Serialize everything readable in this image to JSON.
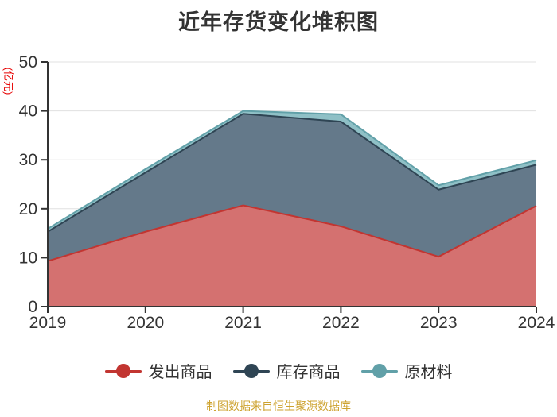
{
  "title": "近年存货变化堆积图",
  "footer": "制图数据来自恒生聚源数据库",
  "y_axis_unit": "(亿元)",
  "colors": {
    "title_text": "#333333",
    "axis": "#333333",
    "tick_text": "#333333",
    "gridline": "#e0e0e0",
    "y_unit_label": "#e60000",
    "footer_text": "#cda22e"
  },
  "legend": {
    "items": [
      {
        "label": "发出商品",
        "color": "#c23531"
      },
      {
        "label": "库存商品",
        "color": "#2f4554"
      },
      {
        "label": "原材料",
        "color": "#61a0a8"
      }
    ]
  },
  "chart_data": {
    "type": "area",
    "stacked": true,
    "title": "近年存货变化堆积图",
    "ylabel": "(亿元)",
    "xlabel": "",
    "categories": [
      "2019",
      "2020",
      "2021",
      "2022",
      "2023",
      "2024"
    ],
    "series": [
      {
        "name": "发出商品",
        "values": [
          9.3,
          15.3,
          20.7,
          16.4,
          10.2,
          20.6
        ],
        "line_color": "#c23531",
        "fill_color": "#d47170"
      },
      {
        "name": "库存商品",
        "values": [
          6.0,
          12.1,
          18.7,
          21.4,
          13.7,
          8.4
        ],
        "line_color": "#2f4554",
        "fill_color": "#64798a"
      },
      {
        "name": "原材料",
        "values": [
          0.6,
          0.7,
          0.6,
          1.5,
          0.9,
          0.9
        ],
        "line_color": "#61a0a8",
        "fill_color": "#8fc0c6"
      }
    ],
    "stack_totals": [
      15.9,
      28.1,
      40.0,
      39.3,
      24.8,
      29.9
    ],
    "yticks": [
      0,
      10,
      20,
      30,
      40,
      50
    ],
    "ylim": [
      0,
      50
    ],
    "grid": true,
    "legend_position": "bottom"
  }
}
